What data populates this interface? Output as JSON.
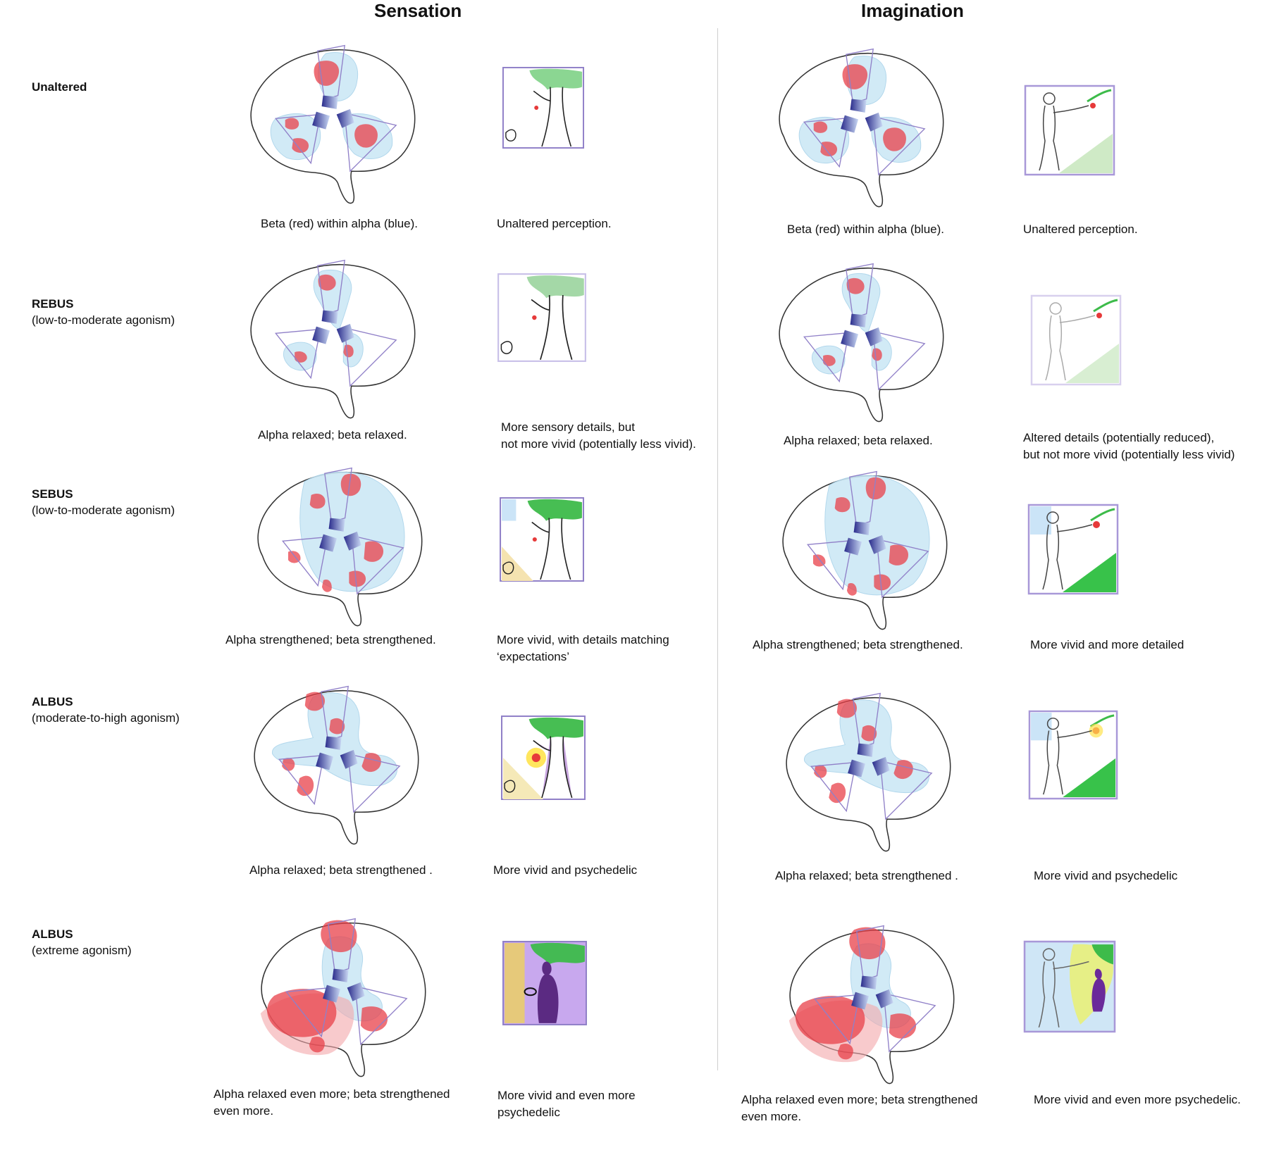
{
  "column_headers": {
    "sensation": "Sensation",
    "imagination": "Imagination"
  },
  "rows": [
    {
      "label": "Unaltered",
      "sublabel": "",
      "sensation": {
        "brain_caption": "Beta (red) within alpha (blue).",
        "scene_caption": "Unaltered perception."
      },
      "imagination": {
        "brain_caption": "Beta (red) within alpha (blue).",
        "scene_caption": "Unaltered perception."
      }
    },
    {
      "label": "REBUS",
      "sublabel": "(low-to-moderate agonism)",
      "sensation": {
        "brain_caption": "Alpha relaxed; beta relaxed.",
        "scene_caption": "More sensory details, but\nnot more vivid (potentially less vivid)."
      },
      "imagination": {
        "brain_caption": "Alpha relaxed; beta relaxed.",
        "scene_caption": "Altered details (potentially reduced),\nbut not more vivid (potentially less vivid)"
      }
    },
    {
      "label": "SEBUS",
      "sublabel": "(low-to-moderate agonism)",
      "sensation": {
        "brain_caption": "Alpha strengthened; beta strengthened.",
        "scene_caption": "More vivid, with details matching\n‘expectations’"
      },
      "imagination": {
        "brain_caption": "Alpha strengthened; beta strengthened.",
        "scene_caption": "More vivid and more detailed"
      }
    },
    {
      "label": "ALBUS",
      "sublabel": "(moderate-to-high agonism)",
      "sensation": {
        "brain_caption": "Alpha relaxed; beta strengthened .",
        "scene_caption": "More vivid and psychedelic"
      },
      "imagination": {
        "brain_caption": "Alpha relaxed; beta strengthened .",
        "scene_caption": "More vivid and psychedelic"
      }
    },
    {
      "label": "ALBUS",
      "sublabel": "(extreme agonism)",
      "sensation": {
        "brain_caption": "Alpha relaxed even more; beta strengthened\neven more.",
        "scene_caption": "More vivid and even more\npsychedelic"
      },
      "imagination": {
        "brain_caption": "Alpha relaxed even more; beta strengthened\neven more.",
        "scene_caption": "More vivid and even more psychedelic."
      }
    }
  ],
  "colors": {
    "alpha_blue": "#cde8f6",
    "beta_red": "#e8404a",
    "frame_purple": "#9080c8",
    "outline": "#333333"
  }
}
